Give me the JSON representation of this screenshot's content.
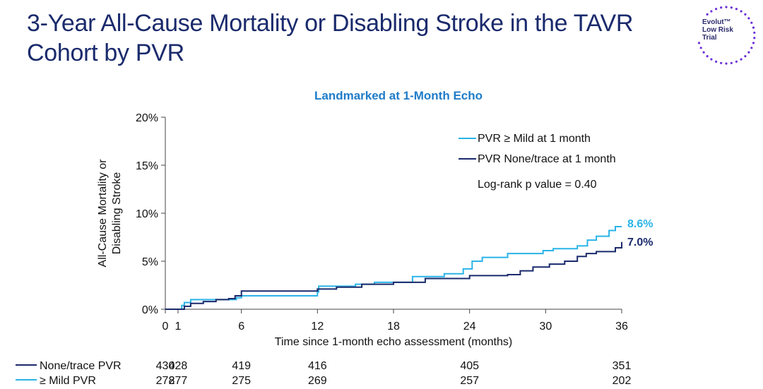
{
  "title": "3-Year All-Cause Mortality or Disabling Stroke in the TAVR Cohort by PVR",
  "logo": {
    "line1": "Evolut™",
    "line2": "Low Risk",
    "line3": "Trial",
    "dot_color": "#6b2fd6"
  },
  "chart_data": {
    "type": "line",
    "title": "Landmarked at 1-Month Echo",
    "xlabel": "Time since 1-month echo assessment (months)",
    "ylabel_lines": [
      "All-Cause Mortality or",
      "Disabling Stroke"
    ],
    "xlim": [
      0,
      36
    ],
    "ylim": [
      0,
      20
    ],
    "x_ticks": [
      0,
      1,
      6,
      12,
      18,
      24,
      30,
      36
    ],
    "y_ticks": [
      0,
      5,
      10,
      15,
      20
    ],
    "y_tick_labels": [
      "0%",
      "5%",
      "10%",
      "15%",
      "20%"
    ],
    "grid": false,
    "legend_position": "top-right",
    "annotation": "Log-rank p value = 0.40",
    "series": [
      {
        "name": "PVR ≥ Mild at 1 month",
        "color": "#2ab4e8",
        "end_label": "8.6%",
        "x": [
          0,
          1,
          1.3,
          1.5,
          2,
          5.6,
          6,
          12,
          12.1,
          15,
          16.5,
          19.5,
          22,
          23.5,
          24.2,
          25,
          27,
          29.8,
          30.6,
          32.5,
          33.3,
          34,
          35,
          35.5,
          36
        ],
        "y": [
          0,
          0,
          0.4,
          0.7,
          1.0,
          1.2,
          1.4,
          1.8,
          2.4,
          2.6,
          2.8,
          3.4,
          3.7,
          4.2,
          5.0,
          5.4,
          5.8,
          6.1,
          6.3,
          6.6,
          7.2,
          7.6,
          8.2,
          8.6,
          8.6
        ]
      },
      {
        "name": "PVR None/trace at 1 month",
        "color": "#1a2a6c",
        "end_label": "7.0%",
        "x": [
          0,
          1,
          1.5,
          2,
          3,
          4,
          5,
          5.5,
          6,
          12,
          13.5,
          15.5,
          18,
          20.5,
          24,
          27,
          28,
          29,
          30.3,
          31.5,
          32.5,
          33.2,
          34,
          35.5,
          36
        ],
        "y": [
          0,
          0,
          0.3,
          0.6,
          0.8,
          1.0,
          1.1,
          1.4,
          1.9,
          2.1,
          2.3,
          2.6,
          2.8,
          3.2,
          3.5,
          3.6,
          4.0,
          4.4,
          4.7,
          5.0,
          5.5,
          5.8,
          6.0,
          6.4,
          7.0
        ]
      }
    ],
    "risk_table": {
      "columns_x": [
        0,
        1,
        6,
        12,
        24,
        36
      ],
      "rows": [
        {
          "label": "None/trace PVR",
          "color": "#1a2a6c",
          "values": [
            "430",
            "428",
            "419",
            "416",
            "405",
            "351"
          ]
        },
        {
          "label": "≥ Mild PVR",
          "color": "#2ab4e8",
          "values": [
            "278",
            "277",
            "275",
            "269",
            "257",
            "202"
          ]
        }
      ]
    }
  }
}
